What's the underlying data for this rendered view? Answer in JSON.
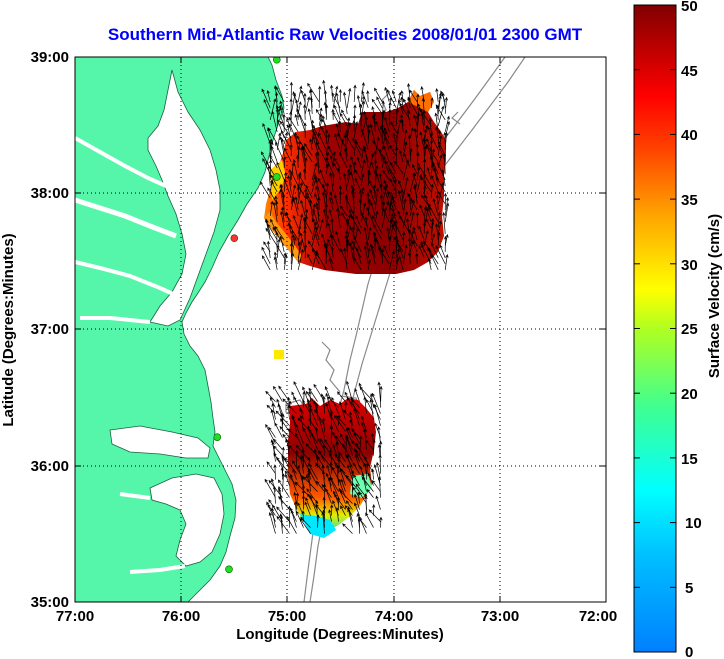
{
  "title": "Southern Mid-Atlantic Raw Velocities 2008/01/01 2300 GMT",
  "x_axis": {
    "label": "Longitude (Degrees:Minutes)",
    "ticks": [
      "77:00",
      "76:00",
      "75:00",
      "74:00",
      "73:00",
      "72:00"
    ],
    "range": [
      -77,
      -72
    ]
  },
  "y_axis": {
    "label": "Latitude (Degrees:Minutes)",
    "ticks": [
      "39:00",
      "38:00",
      "37:00",
      "36:00",
      "35:00"
    ],
    "range": [
      35,
      39
    ]
  },
  "colorbar": {
    "label": "Surface Velocity (cm/s)",
    "ticks": [
      "50",
      "45",
      "40",
      "35",
      "30",
      "25",
      "20",
      "15",
      "10",
      "5",
      "0"
    ],
    "range": [
      0,
      50
    ]
  },
  "colors": {
    "land": "#55f5aa",
    "sea": "#ffffff",
    "bathymetry": "#8a8a8a",
    "title": "#0000ff",
    "station_active": "#22dd22",
    "station_inactive": "#ff3030"
  },
  "stations": [
    {
      "lon": -75.1,
      "lat": 38.98,
      "status": "active"
    },
    {
      "lon": -75.1,
      "lat": 38.12,
      "status": "active"
    },
    {
      "lon": -75.5,
      "lat": 37.67,
      "status": "inactive"
    },
    {
      "lon": -75.66,
      "lat": 36.21,
      "status": "active"
    },
    {
      "lon": -75.55,
      "lat": 35.24,
      "status": "active"
    }
  ],
  "velocity_regions": [
    {
      "name": "north",
      "lon_range": [
        -75.2,
        -73.5
      ],
      "lat_range": [
        37.4,
        38.7
      ],
      "speed_cm_s": [
        35,
        50
      ]
    },
    {
      "name": "south",
      "lon_range": [
        -75.15,
        -74.1
      ],
      "lat_range": [
        35.5,
        36.5
      ],
      "speed_cm_s": [
        10,
        50
      ]
    }
  ]
}
